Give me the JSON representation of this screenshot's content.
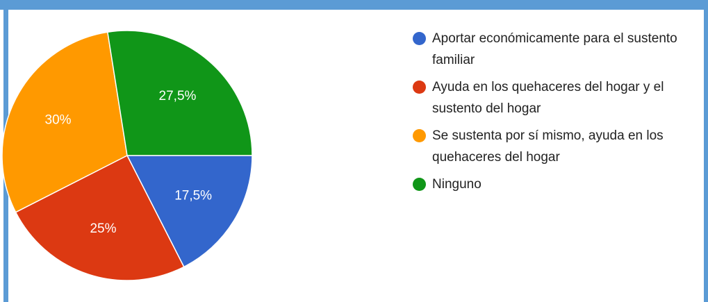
{
  "chart_data": {
    "type": "pie",
    "categories": [
      "Aportar económicamente para el sustento familiar",
      "Ayuda en los quehaceres del hogar y el sustento del hogar",
      "Se sustenta por sí mismo, ayuda en los quehaceres del hogar",
      "Ninguno"
    ],
    "values": [
      17.5,
      25,
      30,
      27.5
    ],
    "value_labels": [
      "17,5%",
      "25%",
      "30%",
      "27,5%"
    ],
    "colors": [
      "#3366cc",
      "#dc3912",
      "#ff9900",
      "#109618"
    ],
    "legend": "right"
  }
}
